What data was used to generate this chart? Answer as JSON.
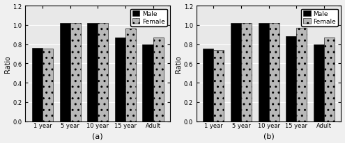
{
  "categories": [
    "1 year",
    "5 year",
    "10 year",
    "15 year",
    "Adult"
  ],
  "panel_a": {
    "male": [
      0.76,
      1.02,
      1.02,
      0.87,
      0.8
    ],
    "female": [
      0.75,
      1.02,
      1.02,
      0.96,
      0.87
    ]
  },
  "panel_b": {
    "male": [
      0.75,
      1.02,
      1.02,
      0.88,
      0.8
    ],
    "female": [
      0.74,
      1.02,
      1.02,
      0.97,
      0.87
    ]
  },
  "ylabel": "Ratio",
  "ylim": [
    0.0,
    1.2
  ],
  "yticks": [
    0.0,
    0.2,
    0.4,
    0.6,
    0.8,
    1.0,
    1.2
  ],
  "label_a": "(a)",
  "label_b": "(b)",
  "male_color": "#000000",
  "female_color": "#b8b8b8",
  "bar_width": 0.38,
  "legend_labels": [
    "Male",
    "Female"
  ],
  "axis_bg": "#e8e8e8",
  "fig_bg": "#f0f0f0",
  "tick_fontsize": 6,
  "label_fontsize": 7,
  "legend_fontsize": 6.5
}
